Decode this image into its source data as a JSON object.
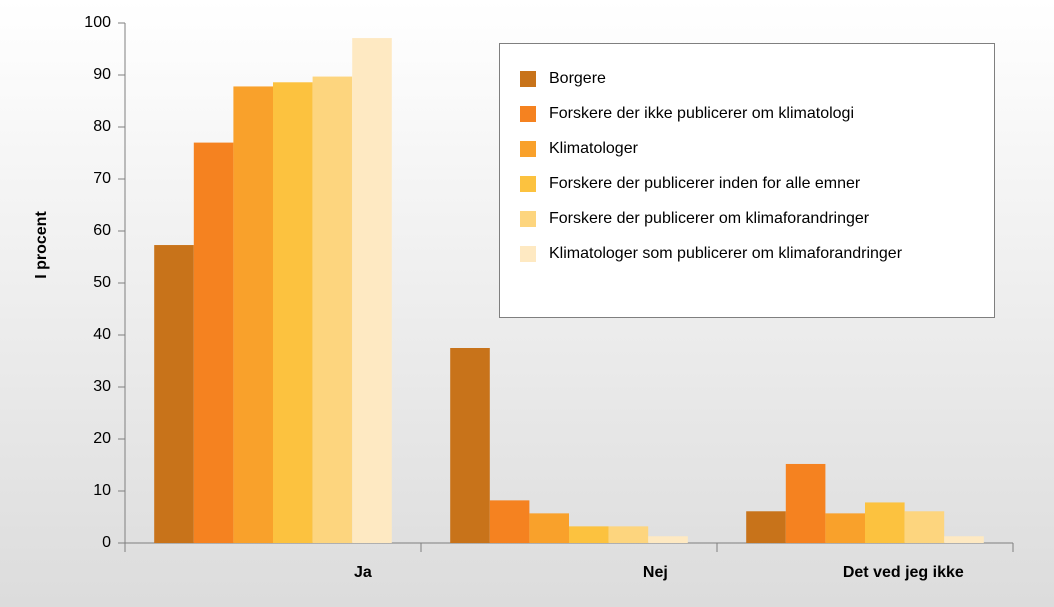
{
  "chart_data": {
    "type": "bar",
    "y_label": "I procent",
    "categories": [
      "Ja",
      "Nej",
      "Det ved jeg ikke"
    ],
    "series": [
      {
        "name": "Borgere",
        "color": "#c8731a",
        "values": [
          57.3,
          37.5,
          6.1
        ]
      },
      {
        "name": "Forskere der ikke publicerer om klimatologi",
        "color": "#f58220",
        "values": [
          77,
          8.2,
          15.2
        ]
      },
      {
        "name": "Klimatologer",
        "color": "#f9a12b",
        "values": [
          87.8,
          5.7,
          5.7
        ]
      },
      {
        "name": "Forskere der publicerer inden for alle emner",
        "color": "#fcc23f",
        "values": [
          88.6,
          3.2,
          7.8
        ]
      },
      {
        "name": "Forskere der publicerer om klimaforandringer",
        "color": "#fdd57e",
        "values": [
          89.7,
          3.2,
          6.1
        ]
      },
      {
        "name": "Klimatologer som publicerer om klimaforandringer",
        "color": "#fee9c2",
        "values": [
          97.1,
          1.3,
          1.3
        ]
      }
    ],
    "ylim": [
      0,
      100
    ],
    "yticks": [
      0,
      10,
      20,
      30,
      40,
      50,
      60,
      70,
      80,
      90,
      100
    ],
    "grid": false
  }
}
